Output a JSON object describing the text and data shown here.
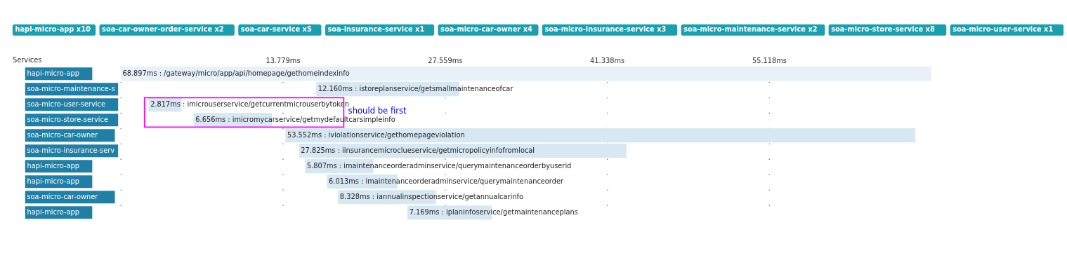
{
  "chart_data": {
    "type": "bar",
    "orientation": "horizontal",
    "ylabel": "Services",
    "categories": [
      "hapi-micro-app",
      "soa-micro-maintenance-s",
      "soa-micro-user-service",
      "soa-micro-store-service",
      "soa-micro-car-owner",
      "soa-micro-insurance-serv",
      "hapi-micro-app",
      "hapi-micro-app",
      "soa-micro-car-owner",
      "hapi-micro-app"
    ],
    "base": [
      0,
      16.62,
      2.37,
      6.2,
      14.0,
      15.16,
      15.67,
      17.53,
      18.47,
      24.37
    ],
    "values": [
      68.897,
      12.16,
      2.817,
      6.656,
      53.552,
      27.825,
      5.807,
      6.013,
      8.328,
      7.169
    ],
    "colors": [
      "#e8f1f8",
      "#d8e8f3",
      "#d8e8f3",
      "#d8e8f3",
      "#d8e8f3",
      "#d8e8f3",
      "#d8e8f3",
      "#d8e8f3",
      "#d8e8f3",
      "#d8e8f3"
    ],
    "value_labels": [
      "68.897ms : /gateway/micro/app/api/homepage/gethomeindexinfo",
      "12.160ms : istoreplanservice/getsmallmaintenanceofcar",
      "2.817ms : imicrouserservice/getcurrentmicrouserbytoken",
      "6.656ms : imicromycarservice/getmydefaultcarsimpleinfo",
      "53.552ms : iviolationservice/gethomepageviolation",
      "27.825ms : iinsurancemicroclueservice/getmicropolicyinfofromlocal",
      "5.807ms : imaintenanceorderadminservice/querymaintenanceorderbyuserid",
      "6.013ms : imaintenanceorderadminservice/querymaintenanceorder",
      "8.328ms : iannualinspectionservice/getannualcarinfo",
      "7.169ms : iplaninfoservice/getmaintenanceplans"
    ],
    "xlim": [
      0,
      68.897
    ],
    "xticks": [
      {
        "value": 0,
        "label": null
      },
      {
        "value": 13.779,
        "label": "13.779ms"
      },
      {
        "value": 27.559,
        "label": "27.559ms"
      },
      {
        "value": 41.338,
        "label": "41.338ms"
      },
      {
        "value": 55.118,
        "label": "55.118ms"
      }
    ],
    "grid": "x",
    "annotations": [
      "hapi-micro-app x10",
      "soa-car-owner-order-service x2",
      "soa-car-service x5",
      "soa-insurance-service x1",
      "soa-micro-car-owner x4",
      "soa-micro-insurance-service x3",
      "soa-micro-maintenance-service x2",
      "soa-micro-store-service x8",
      "soa-micro-user-service x1",
      "should be first"
    ]
  }
}
